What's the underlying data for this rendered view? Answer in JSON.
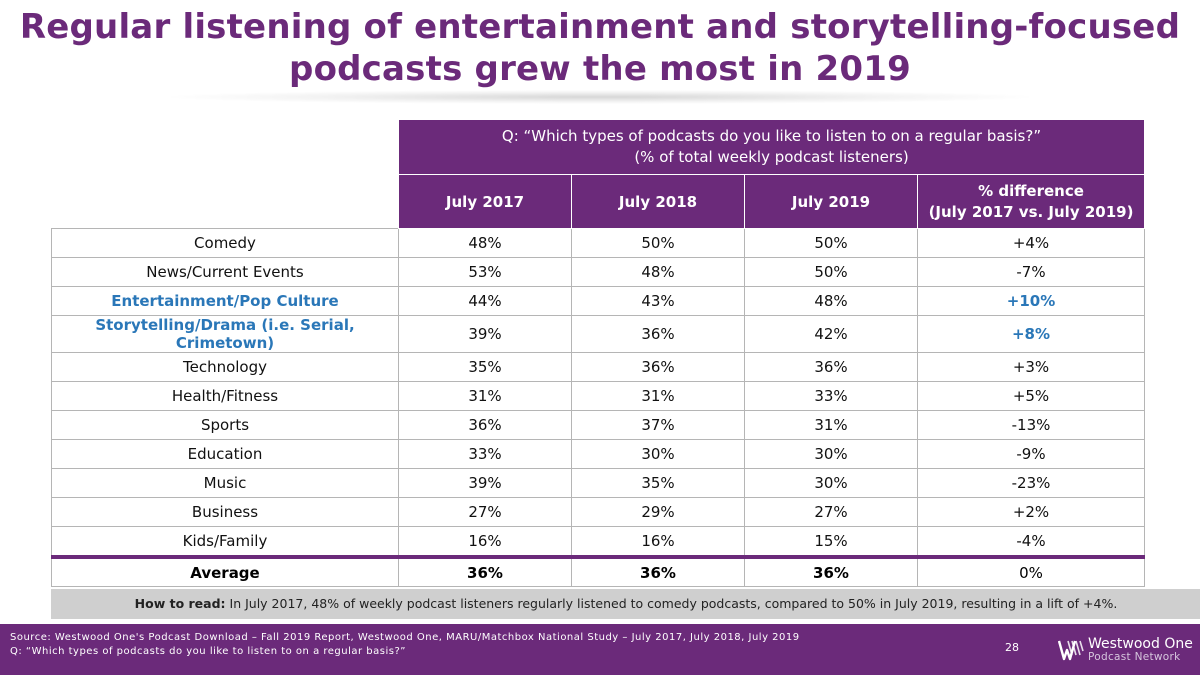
{
  "title": {
    "line1": "Regular listening of entertainment and storytelling-focused",
    "line2": "podcasts grew the most in 2019"
  },
  "question": {
    "line1": "Q: “Which types of podcasts do you like to listen to on a regular basis?”",
    "line2": "(% of total weekly podcast listeners)"
  },
  "columns": [
    "July 2017",
    "July 2018",
    "July 2019"
  ],
  "diff_header": {
    "line1": "% difference",
    "line2": "(July 2017 vs. July 2019)"
  },
  "chart_data": {
    "type": "table",
    "columns": [
      "July 2017",
      "July 2018",
      "July 2019",
      "% difference (July 2017 vs. July 2019)"
    ],
    "rows": [
      {
        "category": "Comedy",
        "v2017": "48%",
        "v2018": "50%",
        "v2019": "50%",
        "diff": "+4%",
        "highlight": false
      },
      {
        "category": "News/Current Events",
        "v2017": "53%",
        "v2018": "48%",
        "v2019": "50%",
        "diff": "-7%",
        "highlight": false
      },
      {
        "category": "Entertainment/Pop Culture",
        "v2017": "44%",
        "v2018": "43%",
        "v2019": "48%",
        "diff": "+10%",
        "highlight": true
      },
      {
        "category": "Storytelling/Drama (i.e. Serial, Crimetown)",
        "v2017": "39%",
        "v2018": "36%",
        "v2019": "42%",
        "diff": "+8%",
        "highlight": true
      },
      {
        "category": "Technology",
        "v2017": "35%",
        "v2018": "36%",
        "v2019": "36%",
        "diff": "+3%",
        "highlight": false
      },
      {
        "category": "Health/Fitness",
        "v2017": "31%",
        "v2018": "31%",
        "v2019": "33%",
        "diff": "+5%",
        "highlight": false
      },
      {
        "category": "Sports",
        "v2017": "36%",
        "v2018": "37%",
        "v2019": "31%",
        "diff": "-13%",
        "highlight": false
      },
      {
        "category": "Education",
        "v2017": "33%",
        "v2018": "30%",
        "v2019": "30%",
        "diff": "-9%",
        "highlight": false
      },
      {
        "category": "Music",
        "v2017": "39%",
        "v2018": "35%",
        "v2019": "30%",
        "diff": "-23%",
        "highlight": false
      },
      {
        "category": "Business",
        "v2017": "27%",
        "v2018": "29%",
        "v2019": "27%",
        "diff": "+2%",
        "highlight": false
      },
      {
        "category": "Kids/Family",
        "v2017": "16%",
        "v2018": "16%",
        "v2019": "15%",
        "diff": "-4%",
        "highlight": false
      }
    ],
    "average": {
      "category": "Average",
      "v2017": "36%",
      "v2018": "36%",
      "v2019": "36%",
      "diff": "0%"
    }
  },
  "howto": {
    "label": "How to read:",
    "text": " In July 2017, 48% of weekly podcast listeners regularly listened to comedy podcasts, compared to 50% in July 2019, resulting in a lift of +4%."
  },
  "footer": {
    "source": "Source: Westwood One's Podcast Download – Fall 2019 Report, Westwood One, MARU/Matchbox National Study – July 2017, July 2018, July 2019",
    "question": "Q: “Which types of podcasts do you like to listen to on a regular basis?”",
    "page": "28",
    "logo_name": "Westwood One",
    "logo_sub": "Podcast Network"
  },
  "colors": {
    "brand_purple": "#6b2a7a",
    "highlight_blue": "#2a77b8",
    "howto_bg": "#cfcfcf"
  },
  "icons": [
    "westwood-one-logo-icon"
  ]
}
